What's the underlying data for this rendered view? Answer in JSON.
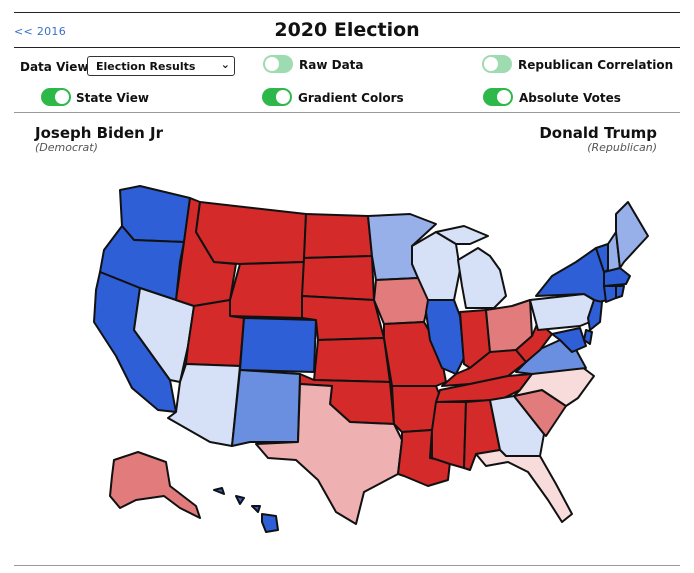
{
  "nav": {
    "back_label": "<< 2016"
  },
  "page": {
    "title": "2020 Election"
  },
  "controls": {
    "data_view_label": "Data View:",
    "data_view_value": "Election Results",
    "toggles": [
      {
        "label": "Raw Data",
        "state": "off"
      },
      {
        "label": "Republican Correlation",
        "state": "off"
      },
      {
        "label": "State View",
        "state": "on"
      },
      {
        "label": "Gradient Colors",
        "state": "on"
      },
      {
        "label": "Absolute Votes",
        "state": "on"
      }
    ]
  },
  "candidates": {
    "left": {
      "name": "Joseph Biden Jr",
      "party": "(Democrat)"
    },
    "right": {
      "name": "Donald Trump",
      "party": "(Republican)"
    }
  },
  "colors": {
    "dem_strong": "#2f5fd6",
    "dem_medium": "#6a8fe0",
    "dem_light": "#97b0ea",
    "dem_pale": "#d6e0f6",
    "rep_strong": "#d42a2a",
    "rep_medium": "#e27c7c",
    "rep_light": "#eeb0b0",
    "rep_pale": "#f8dcdc",
    "toggle_on": "#2fb84a",
    "toggle_off": "#9edbb0"
  },
  "map_data": {
    "WA": "dem_strong",
    "OR": "dem_strong",
    "CA": "dem_strong",
    "NV": "dem_pale",
    "ID": "rep_strong",
    "MT": "rep_strong",
    "WY": "rep_strong",
    "UT": "rep_strong",
    "AZ": "dem_pale",
    "CO": "dem_strong",
    "NM": "dem_medium",
    "ND": "rep_strong",
    "SD": "rep_strong",
    "NE": "rep_strong",
    "KS": "rep_strong",
    "OK": "rep_strong",
    "TX": "rep_light",
    "MN": "dem_light",
    "IA": "rep_medium",
    "MO": "rep_strong",
    "AR": "rep_strong",
    "LA": "rep_strong",
    "WI": "dem_pale",
    "IL": "dem_strong",
    "MI": "dem_pale",
    "IN": "rep_strong",
    "OH": "rep_medium",
    "KY": "rep_strong",
    "TN": "rep_strong",
    "MS": "rep_strong",
    "AL": "rep_strong",
    "GA": "dem_pale",
    "FL": "rep_pale",
    "SC": "rep_medium",
    "NC": "rep_pale",
    "VA": "dem_medium",
    "WV": "rep_strong",
    "PA": "dem_pale",
    "NY": "dem_strong",
    "VT": "dem_strong",
    "NH": "dem_light",
    "ME": "dem_light",
    "MA": "dem_strong",
    "CT": "dem_strong",
    "RI": "dem_strong",
    "NJ": "dem_strong",
    "DE": "dem_strong",
    "MD": "dem_strong",
    "AK": "rep_medium",
    "HI": "dem_strong"
  }
}
